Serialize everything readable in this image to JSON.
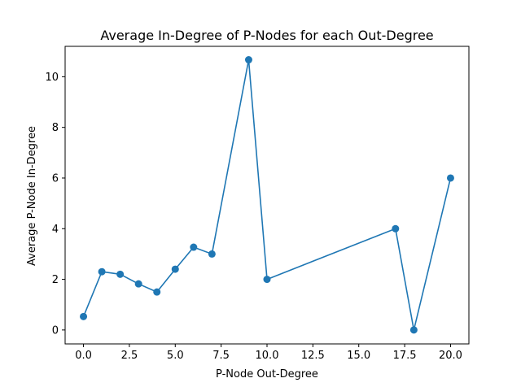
{
  "chart_data": {
    "type": "line",
    "title": "Average In-Degree of P-Nodes for each Out-Degree",
    "xlabel": "P-Node Out-Degree",
    "ylabel": "Average P-Node In-Degree",
    "xlim": [
      -1,
      21
    ],
    "ylim": [
      -0.55,
      11.2
    ],
    "xticks": [
      0.0,
      2.5,
      5.0,
      7.5,
      10.0,
      12.5,
      15.0,
      17.5,
      20.0
    ],
    "xtick_labels": [
      "0.0",
      "2.5",
      "5.0",
      "7.5",
      "10.0",
      "12.5",
      "15.0",
      "17.5",
      "20.0"
    ],
    "yticks": [
      0,
      2,
      4,
      6,
      8,
      10
    ],
    "ytick_labels": [
      "0",
      "2",
      "4",
      "6",
      "8",
      "10"
    ],
    "grid": false,
    "series": [
      {
        "color": "#1f77b4",
        "marker": "circle",
        "x": [
          0,
          1,
          2,
          3,
          4,
          5,
          6,
          7,
          9,
          10,
          17,
          18,
          20
        ],
        "y": [
          0.53,
          2.3,
          2.2,
          1.82,
          1.5,
          2.4,
          3.27,
          3.0,
          10.67,
          2.0,
          4.0,
          0.0,
          6.0
        ]
      }
    ]
  }
}
